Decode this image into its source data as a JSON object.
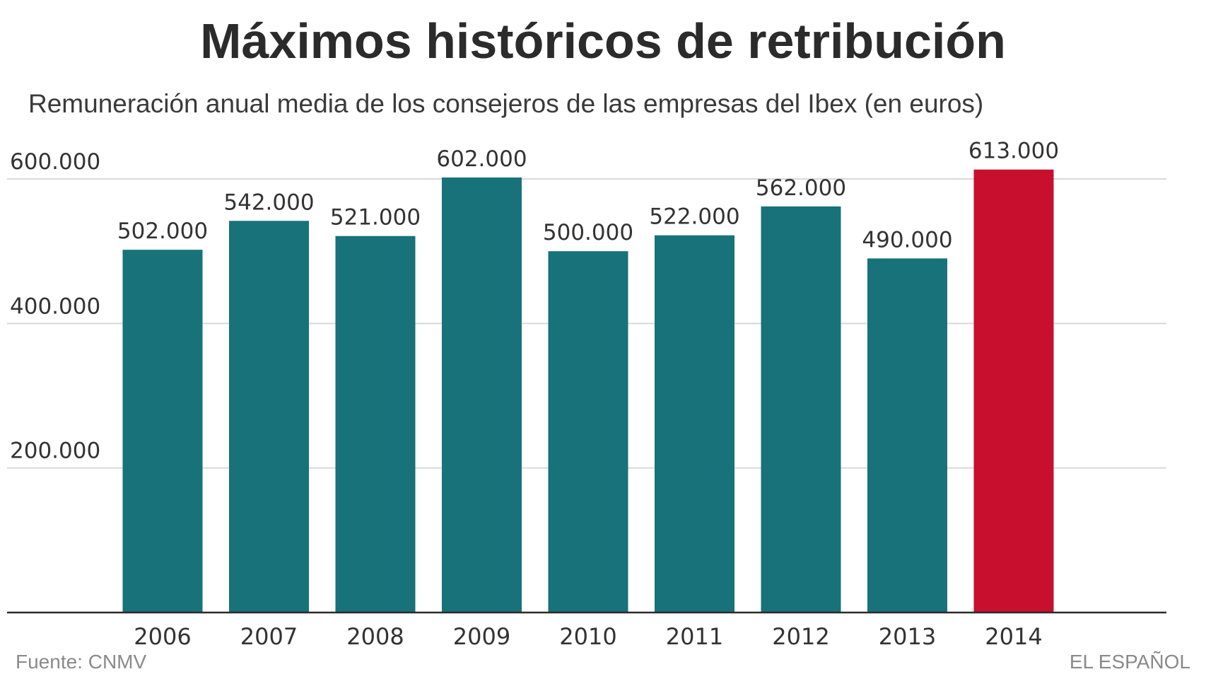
{
  "header": {
    "title": "Máximos históricos de retribución",
    "subtitle": "Remuneración anual media de los consejeros de las empresas del Ibex (en euros)"
  },
  "footer": {
    "source": "Fuente: CNMV",
    "brand": "EL ESPAÑOL"
  },
  "colors": {
    "bar": "#17727a",
    "highlight": "#c8102e",
    "grid": "#d9d9d9",
    "axis": "#2b2b2b",
    "text": "#333333"
  },
  "chart_data": {
    "type": "bar",
    "title": "Máximos históricos de retribución",
    "subtitle": "Remuneración anual media de los consejeros de las empresas del Ibex (en euros)",
    "categories": [
      "2006",
      "2007",
      "2008",
      "2009",
      "2010",
      "2011",
      "2012",
      "2013",
      "2014"
    ],
    "values": [
      502000,
      542000,
      521000,
      602000,
      500000,
      522000,
      562000,
      490000,
      613000
    ],
    "value_labels": [
      "502.000",
      "542.000",
      "521.000",
      "602.000",
      "500.000",
      "522.000",
      "562.000",
      "490.000",
      "613.000"
    ],
    "highlight_category": "2014",
    "ylim": [
      0,
      600000
    ],
    "yticks": [
      200000,
      400000,
      600000
    ],
    "ytick_labels": [
      "200.000",
      "400.000",
      "600.000"
    ],
    "grid": true,
    "legend": "none"
  }
}
